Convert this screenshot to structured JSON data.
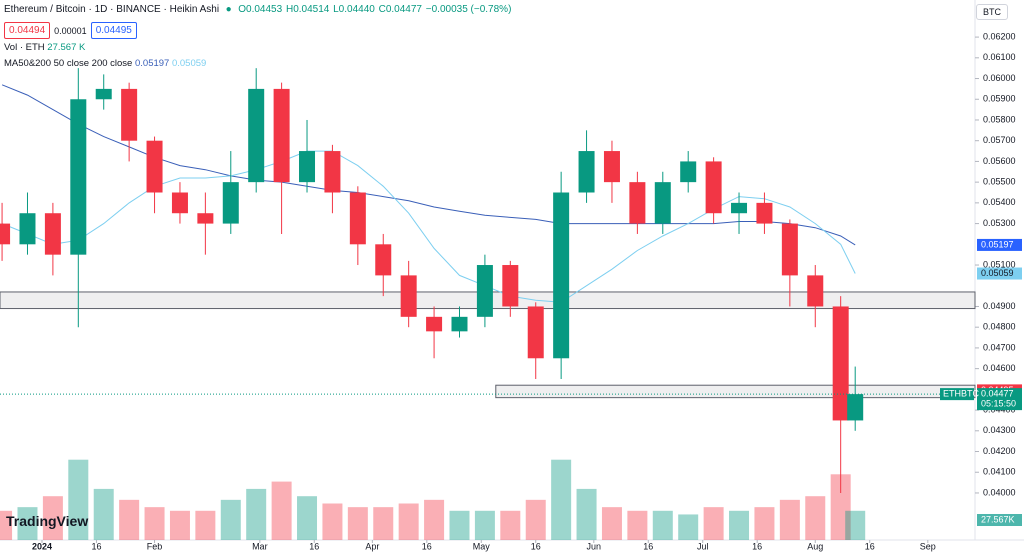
{
  "header": {
    "symbol": "Ethereum / Bitcoin · 1D · BINANCE · Heikin Ashi",
    "o": "O0.04453",
    "h": "H0.04514",
    "l": "L0.04440",
    "c": "C0.04477",
    "change": "−0.00035 (−0.78%)"
  },
  "currency": "BTC",
  "sell": "0.04494",
  "spread": "0.00001",
  "buy": "0.04495",
  "volume_legend": {
    "label": "Vol · ETH",
    "value": "27.567 K"
  },
  "ma_legend": {
    "label": "MA50&200 50 close 200 close"
  },
  "logo": "TradingView",
  "chart_data": {
    "type": "candlestick",
    "up_color": "#089981",
    "down_color": "#f23645",
    "x": [
      -11,
      -4,
      3,
      10,
      17,
      24,
      31,
      38,
      45,
      52,
      59,
      66,
      73,
      80,
      87,
      94,
      101,
      108,
      115,
      122,
      129,
      136,
      143,
      150,
      157,
      164,
      171,
      178,
      185,
      192,
      199,
      206,
      213,
      220,
      224
    ],
    "open": [
      0.053,
      0.052,
      0.0535,
      0.0515,
      0.059,
      0.0595,
      0.057,
      0.0545,
      0.0535,
      0.053,
      0.055,
      0.0595,
      0.055,
      0.0565,
      0.0545,
      0.052,
      0.0505,
      0.0485,
      0.0478,
      0.0485,
      0.051,
      0.049,
      0.0465,
      0.0545,
      0.0565,
      0.055,
      0.053,
      0.055,
      0.056,
      0.0535,
      0.054,
      0.053,
      0.0505,
      0.049,
      0.0435
    ],
    "high": [
      0.054,
      0.0545,
      0.054,
      0.0605,
      0.0602,
      0.0598,
      0.0572,
      0.055,
      0.0545,
      0.0565,
      0.0605,
      0.0598,
      0.058,
      0.0568,
      0.0548,
      0.0525,
      0.0512,
      0.049,
      0.049,
      0.0515,
      0.0512,
      0.0492,
      0.0555,
      0.0575,
      0.057,
      0.0555,
      0.0555,
      0.0565,
      0.0562,
      0.0545,
      0.0545,
      0.0532,
      0.051,
      0.0495,
      0.0461
    ],
    "low": [
      0.0512,
      0.0515,
      0.0505,
      0.048,
      0.0585,
      0.056,
      0.0535,
      0.053,
      0.0515,
      0.0525,
      0.0545,
      0.0525,
      0.0545,
      0.0535,
      0.051,
      0.0495,
      0.048,
      0.0465,
      0.0475,
      0.048,
      0.0485,
      0.0455,
      0.0455,
      0.054,
      0.054,
      0.0525,
      0.0525,
      0.0545,
      0.053,
      0.0525,
      0.0525,
      0.049,
      0.048,
      0.04,
      0.043
    ],
    "close": [
      0.052,
      0.0535,
      0.0515,
      0.059,
      0.0595,
      0.057,
      0.0545,
      0.0535,
      0.053,
      0.055,
      0.0595,
      0.055,
      0.0565,
      0.0545,
      0.052,
      0.0505,
      0.0485,
      0.0478,
      0.0485,
      0.051,
      0.049,
      0.0465,
      0.0545,
      0.0565,
      0.055,
      0.053,
      0.055,
      0.056,
      0.0535,
      0.054,
      0.053,
      0.0505,
      0.049,
      0.0435,
      0.04477
    ],
    "volume": [
      40,
      45,
      60,
      110,
      70,
      55,
      45,
      40,
      40,
      55,
      70,
      80,
      60,
      50,
      45,
      45,
      50,
      55,
      40,
      40,
      40,
      55,
      110,
      70,
      45,
      40,
      40,
      35,
      45,
      40,
      45,
      55,
      60,
      90,
      40
    ],
    "volume_label": "27.567K",
    "ma200": {
      "name": "MA200",
      "color": "#3a5fb8",
      "values": [
        0.0597,
        0.0592,
        0.0585,
        0.0578,
        0.0572,
        0.0567,
        0.0562,
        0.0558,
        0.0556,
        0.0553,
        0.0551,
        0.055,
        0.0548,
        0.0546,
        0.0545,
        0.0543,
        0.0541,
        0.0538,
        0.0536,
        0.0534,
        0.0533,
        0.0532,
        0.053,
        0.053,
        0.053,
        0.053,
        0.053,
        0.053,
        0.053,
        0.0531,
        0.0531,
        0.053,
        0.0528,
        0.0524,
        0.05197
      ]
    },
    "ma50": {
      "name": "MA50",
      "color": "#7dcff0",
      "values": [
        0.053,
        0.0525,
        0.052,
        0.0522,
        0.053,
        0.054,
        0.0548,
        0.0552,
        0.0552,
        0.0553,
        0.0556,
        0.056,
        0.0565,
        0.0565,
        0.0558,
        0.0548,
        0.0535,
        0.0518,
        0.0505,
        0.05,
        0.0495,
        0.0493,
        0.0492,
        0.05,
        0.0508,
        0.0517,
        0.0524,
        0.053,
        0.0537,
        0.0543,
        0.0542,
        0.0538,
        0.053,
        0.052,
        0.05059
      ]
    },
    "zones": [
      {
        "top": 0.0497,
        "bottom": 0.0489,
        "x_start": -11.57
      },
      {
        "top": 0.0452,
        "bottom": 0.0446,
        "x_start": 125
      }
    ],
    "last_price": 0.04477,
    "ask": 0.04495,
    "countdown": "05:15:50",
    "symbol_tag": "ETHBTC",
    "xlim": [
      -11.57,
      257
    ],
    "ylim": [
      0.03773,
      0.06379
    ],
    "xticks": [
      {
        "value": 0,
        "label": "2024"
      },
      {
        "value": 15,
        "label": "16"
      },
      {
        "value": 31,
        "label": "Feb"
      },
      {
        "value": 60,
        "label": "Mar"
      },
      {
        "value": 75,
        "label": "16"
      },
      {
        "value": 91,
        "label": "Apr"
      },
      {
        "value": 106,
        "label": "16"
      },
      {
        "value": 121,
        "label": "May"
      },
      {
        "value": 136,
        "label": "16"
      },
      {
        "value": 152,
        "label": "Jun"
      },
      {
        "value": 167,
        "label": "16"
      },
      {
        "value": 182,
        "label": "Jul"
      },
      {
        "value": 197,
        "label": "16"
      },
      {
        "value": 213,
        "label": "Aug"
      },
      {
        "value": 228,
        "label": "16"
      },
      {
        "value": 244,
        "label": "Sep"
      }
    ],
    "yticks": [
      {
        "value": 0.062,
        "label": "0.06200"
      },
      {
        "value": 0.061,
        "label": "0.06100"
      },
      {
        "value": 0.06,
        "label": "0.06000"
      },
      {
        "value": 0.059,
        "label": "0.05900"
      },
      {
        "value": 0.058,
        "label": "0.05800"
      },
      {
        "value": 0.057,
        "label": "0.05700"
      },
      {
        "value": 0.056,
        "label": "0.05600"
      },
      {
        "value": 0.055,
        "label": "0.05500"
      },
      {
        "value": 0.054,
        "label": "0.05400"
      },
      {
        "value": 0.053,
        "label": "0.05300"
      },
      {
        "value": 0.051,
        "label": "0.05100"
      },
      {
        "value": 0.049,
        "label": "0.04900"
      },
      {
        "value": 0.048,
        "label": "0.04800"
      },
      {
        "value": 0.047,
        "label": "0.04700"
      },
      {
        "value": 0.046,
        "label": "0.04600"
      },
      {
        "value": 0.044,
        "label": "0.04400"
      },
      {
        "value": 0.043,
        "label": "0.04300"
      },
      {
        "value": 0.042,
        "label": "0.04200"
      },
      {
        "value": 0.041,
        "label": "0.04100"
      },
      {
        "value": 0.04,
        "label": "0.04000"
      }
    ]
  }
}
